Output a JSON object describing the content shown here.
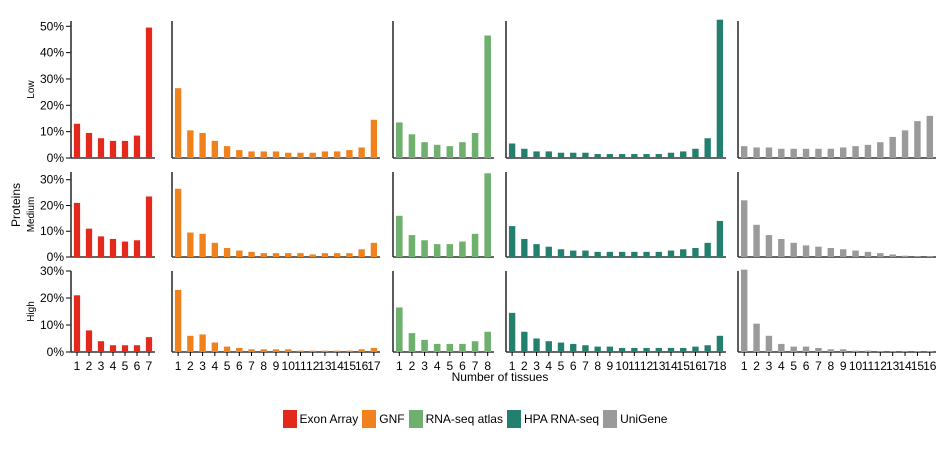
{
  "chart_data": {
    "type": "bar",
    "ylabel": "Proteins",
    "xlabel": "Number of tissues",
    "rows": [
      "Low",
      "Medium",
      "High"
    ],
    "row_ylims": [
      [
        0,
        52
      ],
      [
        0,
        33
      ],
      [
        0,
        30
      ]
    ],
    "row_yticks": [
      [
        {
          "v": 0,
          "t": "0%"
        },
        {
          "v": 10,
          "t": "10%"
        },
        {
          "v": 20,
          "t": "20%"
        },
        {
          "v": 30,
          "t": "30%"
        },
        {
          "v": 40,
          "t": "40%"
        },
        {
          "v": 50,
          "t": "50%"
        }
      ],
      [
        {
          "v": 0,
          "t": "0%"
        },
        {
          "v": 10,
          "t": "10%"
        },
        {
          "v": 20,
          "t": "20%"
        },
        {
          "v": 30,
          "t": "30%"
        }
      ],
      [
        {
          "v": 0,
          "t": "0%"
        },
        {
          "v": 10,
          "t": "10%"
        },
        {
          "v": 20,
          "t": "20%"
        },
        {
          "v": 30,
          "t": "30%"
        }
      ]
    ],
    "series": [
      {
        "name": "Exon Array",
        "color": "#E2291C",
        "categories": [
          "1",
          "2",
          "3",
          "4",
          "5",
          "6",
          "7"
        ],
        "values": [
          [
            13,
            9.5,
            7.5,
            6.5,
            6.5,
            8.5,
            49.5
          ],
          [
            21,
            11,
            8,
            7,
            6,
            6.5,
            23.5
          ],
          [
            21,
            8,
            4,
            2.5,
            2.5,
            2.5,
            5.5
          ]
        ]
      },
      {
        "name": "GNF",
        "color": "#F0821E",
        "categories": [
          "1",
          "2",
          "3",
          "4",
          "5",
          "6",
          "7",
          "8",
          "9",
          "10",
          "11",
          "12",
          "13",
          "14",
          "15",
          "16",
          "17"
        ],
        "values": [
          [
            26.5,
            10.5,
            9.5,
            6.5,
            4.5,
            3,
            2.5,
            2.5,
            2.5,
            2,
            2,
            2,
            2.5,
            2.5,
            3,
            4,
            14.5
          ],
          [
            26.5,
            9.5,
            9,
            5.5,
            3.5,
            2.5,
            2,
            1.5,
            1.5,
            1.5,
            1.5,
            1,
            1.5,
            1.5,
            1.5,
            3,
            5.5
          ],
          [
            23,
            6,
            6.5,
            3.5,
            2,
            1.5,
            1,
            1,
            1,
            1,
            0.5,
            0.5,
            0.5,
            0.5,
            0.5,
            1,
            1.5
          ]
        ]
      },
      {
        "name": "RNA-seq atlas",
        "color": "#6FB06F",
        "categories": [
          "1",
          "2",
          "3",
          "4",
          "5",
          "6",
          "7",
          "8"
        ],
        "values": [
          [
            13.5,
            9,
            6,
            5,
            4.5,
            6,
            9.5,
            46.5
          ],
          [
            16,
            8.5,
            6.5,
            5,
            5,
            6,
            9,
            32.5
          ],
          [
            16.5,
            7,
            4.5,
            3,
            3,
            3,
            4,
            7.5
          ]
        ]
      },
      {
        "name": "HPA RNA-seq",
        "color": "#23806E",
        "categories": [
          "1",
          "2",
          "3",
          "4",
          "5",
          "6",
          "7",
          "8",
          "9",
          "10",
          "11",
          "12",
          "13",
          "14",
          "15",
          "16",
          "17",
          "18"
        ],
        "values": [
          [
            5.5,
            3.5,
            2.5,
            2.5,
            2,
            2,
            2,
            1.5,
            1.5,
            1.5,
            1.5,
            1.5,
            1.5,
            2,
            2.5,
            3.5,
            7.5,
            52.5
          ],
          [
            12,
            7,
            5,
            4,
            3,
            2.5,
            2.5,
            2,
            2,
            2,
            2,
            2,
            2,
            2.5,
            3,
            3.5,
            5.5,
            14
          ],
          [
            14.5,
            7.5,
            5,
            4,
            3.5,
            3,
            2.5,
            2,
            2,
            1.5,
            1.5,
            1.5,
            1.5,
            1.5,
            1.5,
            2,
            2.5,
            6
          ]
        ]
      },
      {
        "name": "UniGene",
        "color": "#9A9A9A",
        "categories": [
          "1",
          "2",
          "3",
          "4",
          "5",
          "6",
          "7",
          "8",
          "9",
          "10",
          "11",
          "12",
          "13",
          "14",
          "15",
          "16"
        ],
        "values": [
          [
            4.5,
            4,
            4,
            3.5,
            3.5,
            3.5,
            3.5,
            3.5,
            4,
            4.5,
            5,
            6,
            8,
            10.5,
            14,
            16
          ],
          [
            22,
            12.5,
            8.5,
            7,
            5.5,
            4.5,
            4,
            3.5,
            3,
            2.5,
            2,
            1.5,
            1,
            0.5,
            0.2,
            0.2
          ],
          [
            30.5,
            10.5,
            6,
            3,
            2,
            2,
            1.5,
            1,
            1,
            0.5,
            0.5,
            0.3,
            0.3,
            0.3,
            0.2,
            0.2
          ]
        ]
      }
    ]
  }
}
